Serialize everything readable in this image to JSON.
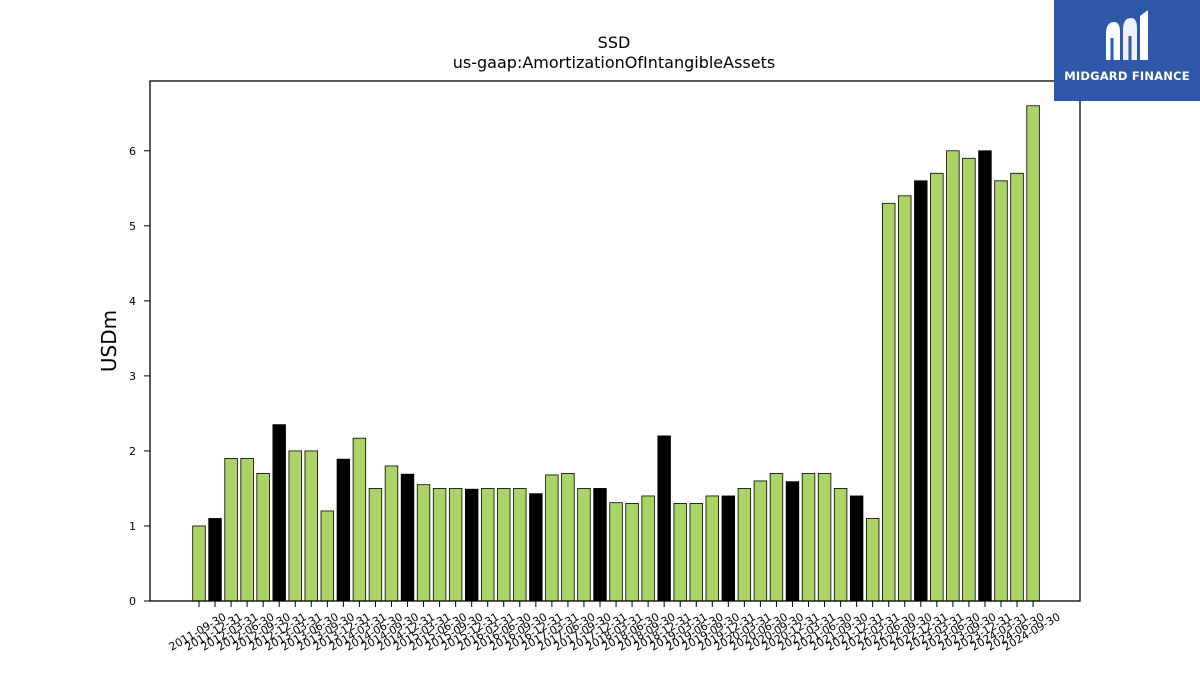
{
  "brand": {
    "name": "MIDGARD FINANCE",
    "logo_icon": "midgard-m-icon",
    "background": "#2f58a8"
  },
  "chart_data": {
    "type": "bar",
    "title": "SSD",
    "subtitle": "us-gaap:AmortizationOfIntangibleAssets",
    "ylabel": "USDm",
    "xlabel": "",
    "ylim": [
      0,
      6.93
    ],
    "yticks": [
      0,
      1,
      2,
      3,
      4,
      5,
      6
    ],
    "grid": false,
    "colors": {
      "quarter": "#aad466",
      "fiscal_q4": "#000000",
      "edge": "#000000"
    },
    "categories": [
      "2011-09-30",
      "2011-12-31",
      "2012-03-31",
      "2012-06-30",
      "2012-09-30",
      "2012-12-31",
      "2013-03-31",
      "2013-06-30",
      "2013-09-30",
      "2013-12-31",
      "2014-03-31",
      "2014-06-30",
      "2014-09-30",
      "2014-12-31",
      "2015-03-31",
      "2015-06-30",
      "2015-09-30",
      "2015-12-31",
      "2016-03-31",
      "2016-06-30",
      "2016-09-30",
      "2016-12-31",
      "2017-03-31",
      "2017-06-30",
      "2017-09-30",
      "2017-12-31",
      "2018-03-31",
      "2018-06-30",
      "2018-09-30",
      "2018-12-31",
      "2019-03-31",
      "2019-06-30",
      "2019-09-30",
      "2019-12-31",
      "2020-03-31",
      "2020-06-30",
      "2020-09-30",
      "2020-12-31",
      "2021-03-31",
      "2021-06-30",
      "2021-09-30",
      "2021-12-31",
      "2022-03-31",
      "2022-06-30",
      "2022-09-30",
      "2022-12-31",
      "2023-03-31",
      "2023-06-30",
      "2023-09-30",
      "2023-12-31",
      "2024-03-31",
      "2024-06-30",
      "2024-09-30"
    ],
    "values": [
      1.0,
      1.1,
      1.9,
      1.9,
      1.7,
      2.35,
      2.0,
      2.0,
      1.2,
      1.89,
      2.17,
      1.5,
      1.8,
      1.69,
      1.55,
      1.5,
      1.5,
      1.49,
      1.5,
      1.5,
      1.5,
      1.43,
      1.68,
      1.7,
      1.5,
      1.5,
      1.31,
      1.3,
      1.4,
      2.2,
      1.3,
      1.3,
      1.4,
      1.4,
      1.5,
      1.6,
      1.7,
      1.59,
      1.7,
      1.7,
      1.5,
      1.4,
      1.1,
      5.3,
      5.4,
      5.6,
      5.7,
      6.0,
      5.9,
      6.0,
      5.6,
      5.7,
      6.6
    ],
    "highlight": [
      false,
      true,
      false,
      false,
      false,
      true,
      false,
      false,
      false,
      true,
      false,
      false,
      false,
      true,
      false,
      false,
      false,
      true,
      false,
      false,
      false,
      true,
      false,
      false,
      false,
      true,
      false,
      false,
      false,
      true,
      false,
      false,
      false,
      true,
      false,
      false,
      false,
      true,
      false,
      false,
      false,
      true,
      false,
      false,
      false,
      true,
      false,
      false,
      false,
      true,
      false,
      false,
      false
    ]
  }
}
